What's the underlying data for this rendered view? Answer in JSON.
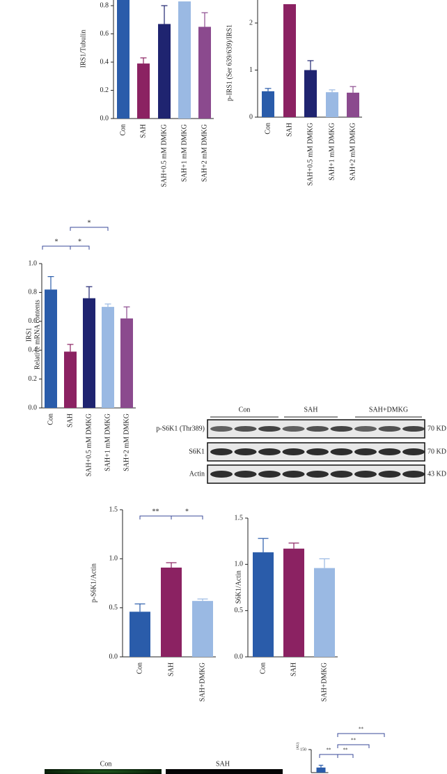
{
  "chart_data": [
    {
      "type": "bar",
      "y_label": "IRS1/Tubulin",
      "categories": [
        "Con",
        "SAH",
        "SAH+0.5 mM DMKG",
        "SAH+1 mM DMKG",
        "SAH+2 mM DMKG"
      ],
      "values": [
        0.85,
        0.39,
        0.67,
        0.83,
        0.65
      ],
      "errors": [
        null,
        0.04,
        0.13,
        null,
        0.1
      ],
      "colors": [
        "#2a5caa",
        "#8b2262",
        "#1f2470",
        "#9ab9e3",
        "#8b4a8e"
      ],
      "ylim": [
        0,
        0.85
      ],
      "yticks": [
        {
          "value": 0,
          "label": "0.0"
        },
        {
          "value": 0.2,
          "label": "0.2"
        },
        {
          "value": 0.4,
          "label": "0.4"
        },
        {
          "value": 0.6,
          "label": "0.6"
        },
        {
          "value": 0.8,
          "label": "0.8"
        }
      ]
    },
    {
      "type": "bar",
      "y_label": "p-IRS1 (Ser 639/639)/IRS1",
      "categories": [
        "Con",
        "SAH",
        "SAH+0.5 mM DMKG",
        "SAH+1 mM DMKG",
        "SAH+2 mM DMKG"
      ],
      "values": [
        0.55,
        2.4,
        1.0,
        0.53,
        0.52
      ],
      "errors": [
        0.06,
        null,
        0.2,
        0.05,
        0.13
      ],
      "colors": [
        "#2a5caa",
        "#8b2262",
        "#1f2470",
        "#9ab9e3",
        "#8b4a8e"
      ],
      "ylim": [
        0,
        2.5
      ],
      "yticks": [
        0,
        1,
        2
      ]
    },
    {
      "type": "bar",
      "y_label": [
        "IRS1",
        "Relative mRNA contents"
      ],
      "categories": [
        "Con",
        "SAH",
        "SAH+0.5 mM DMKG",
        "SAH+1 mM DMKG",
        "SAH+2 mM DMKG"
      ],
      "values": [
        0.82,
        0.39,
        0.76,
        0.7,
        0.62
      ],
      "errors": [
        0.09,
        0.05,
        0.08,
        0.02,
        0.08
      ],
      "colors": [
        "#2a5caa",
        "#8b2262",
        "#1f2470",
        "#9ab9e3",
        "#8b4a8e"
      ],
      "ylim": [
        0,
        1
      ],
      "yticks": [
        {
          "value": 0,
          "label": "0.0"
        },
        {
          "value": 0.2,
          "label": "0.2"
        },
        {
          "value": 0.4,
          "label": "0.4"
        },
        {
          "value": 0.6,
          "label": "0.6"
        },
        {
          "value": 0.8,
          "label": "0.8"
        },
        {
          "value": 1,
          "label": "1.0"
        }
      ],
      "significance": [
        "*",
        "*",
        "*"
      ]
    },
    {
      "type": "bar",
      "y_label": "p-S6K1/Actin",
      "categories": [
        "Con",
        "SAH",
        "SAH+DMKG"
      ],
      "values": [
        0.46,
        0.91,
        0.57
      ],
      "errors": [
        0.08,
        0.05,
        0.02
      ],
      "colors": [
        "#2a5caa",
        "#8b2262",
        "#9ab9e3"
      ],
      "ylim": [
        0,
        1.5
      ],
      "yticks": [
        {
          "value": 0,
          "label": "0.0"
        },
        0.5,
        {
          "value": 1,
          "label": "1.0"
        },
        1.5
      ],
      "significance": [
        "**",
        "*"
      ]
    },
    {
      "type": "bar",
      "y_label": "S6K1/Actin",
      "categories": [
        "Con",
        "SAH",
        "SAH+DMKG"
      ],
      "values": [
        1.13,
        1.17,
        0.96
      ],
      "errors": [
        0.15,
        0.06,
        0.1
      ],
      "colors": [
        "#2a5caa",
        "#8b2262",
        "#9ab9e3"
      ],
      "ylim": [
        0,
        1.5
      ],
      "yticks": [
        {
          "value": 0,
          "label": "0.0"
        },
        0.5,
        {
          "value": 1,
          "label": "1.0"
        },
        1.5
      ]
    },
    {
      "type": "bar",
      "y_label": "(AU)",
      "values": [
        111
      ],
      "errors": [
        5
      ],
      "colors": [
        "#2a5caa"
      ],
      "ylim": [
        100,
        150
      ],
      "yticks": [
        150
      ],
      "significance": [
        "**",
        "**",
        "**",
        "**"
      ]
    }
  ],
  "blot": {
    "groups": [
      "Con",
      "SAH",
      "SAH+DMKG"
    ],
    "rows": [
      {
        "label": "p-S6K1 (Thr389)",
        "size": "70 KD"
      },
      {
        "label": "S6K1",
        "size": "70 KD"
      },
      {
        "label": "Actin",
        "size": "43 KD"
      }
    ]
  },
  "micrographs": {
    "labels": [
      "Con",
      "SAH"
    ]
  }
}
